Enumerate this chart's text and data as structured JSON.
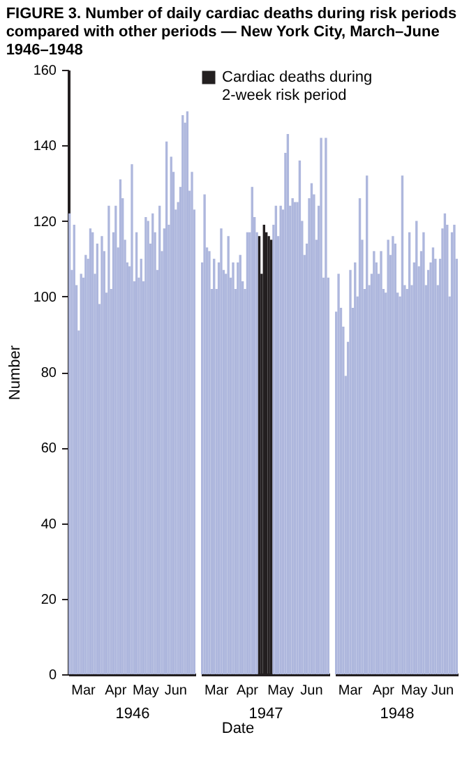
{
  "chart_data": [
    {
      "type": "bar",
      "title": "FIGURE 3. Number of daily cardiac deaths during risk periods compared with other periods — New York City, March–June 1946–1948",
      "ylabel": "Number",
      "xlabel": "1946",
      "color": "#aeb7dd",
      "ylim": [
        0,
        160
      ],
      "yticks": [
        0,
        20,
        40,
        60,
        80,
        100,
        120,
        140,
        160
      ],
      "categories": [
        null,
        null,
        null,
        null,
        null,
        null,
        "Mar",
        null,
        null,
        null,
        null,
        null,
        null,
        null,
        null,
        null,
        null,
        null,
        null,
        null,
        "Apr",
        null,
        null,
        null,
        null,
        null,
        null,
        null,
        null,
        null,
        null,
        null,
        null,
        "May",
        null,
        null,
        null,
        null,
        null,
        null,
        null,
        null,
        null,
        null,
        null,
        null,
        "Jun",
        null,
        null,
        null,
        null,
        null,
        null,
        null,
        null
      ],
      "values": [
        122,
        107,
        119,
        103,
        91,
        106,
        105,
        111,
        110,
        118,
        117,
        106,
        114,
        98,
        116,
        112,
        101,
        124,
        102,
        117,
        124,
        113,
        131,
        126,
        115,
        109,
        108,
        135,
        104,
        117,
        105,
        110,
        104,
        121,
        120,
        114,
        122,
        117,
        107,
        124,
        112,
        118,
        141,
        119,
        137,
        133,
        123,
        125,
        129,
        148,
        146,
        149,
        128,
        133,
        123
      ]
    },
    {
      "type": "bar",
      "xlabel": "1947",
      "ylim": [
        0,
        160
      ],
      "tick_labels": "x",
      "legend": "top",
      "annotations": [
        "Date"
      ],
      "categories": [
        null,
        null,
        null,
        null,
        null,
        null,
        "Mar",
        null,
        null,
        null,
        null,
        null,
        null,
        null,
        null,
        null,
        null,
        null,
        null,
        "Apr",
        null,
        null,
        null,
        null,
        null,
        null,
        null,
        null,
        null,
        null,
        null,
        null,
        null,
        "May",
        null,
        null,
        null,
        null,
        null,
        null,
        null,
        null,
        null,
        null,
        null,
        null,
        "Jun",
        null,
        null,
        null,
        null,
        null,
        null,
        null
      ],
      "series": [
        {
          "color": "#aeb7dd",
          "values": [
            109,
            127,
            113,
            112,
            102,
            110,
            102,
            109,
            118,
            107,
            106,
            116,
            105,
            109,
            102,
            109,
            111,
            104,
            102,
            117,
            117,
            129,
            121,
            117,
            null,
            null,
            null,
            null,
            null,
            null,
            119,
            124,
            116,
            124,
            123,
            138,
            143,
            124,
            126,
            125,
            125,
            136,
            120,
            111,
            114,
            126,
            130,
            127,
            115,
            124,
            142,
            105,
            142,
            105
          ]
        },
        {
          "name": "Cardiac deaths during 2-week risk period",
          "color": "#231f20",
          "values": [
            null,
            null,
            null,
            null,
            null,
            null,
            null,
            null,
            null,
            null,
            null,
            null,
            null,
            null,
            null,
            null,
            null,
            null,
            null,
            null,
            null,
            null,
            null,
            null,
            116,
            106,
            119,
            117,
            116,
            115,
            null,
            null,
            null,
            null,
            null,
            null,
            null,
            null,
            null,
            null,
            null,
            null,
            null,
            null,
            null,
            null,
            null,
            null,
            null,
            null,
            null,
            null,
            null,
            null
          ]
        }
      ]
    },
    {
      "type": "bar",
      "xlabel": "1948",
      "color": "#aeb7dd",
      "ylim": [
        0,
        160
      ],
      "tick_labels": "x",
      "categories": [
        null,
        null,
        null,
        null,
        null,
        null,
        "Mar",
        null,
        null,
        null,
        null,
        null,
        null,
        null,
        null,
        null,
        null,
        null,
        null,
        null,
        "Apr",
        null,
        null,
        null,
        null,
        null,
        null,
        null,
        null,
        null,
        null,
        null,
        null,
        "May",
        null,
        null,
        null,
        null,
        null,
        null,
        null,
        null,
        null,
        null,
        null,
        "Jun",
        null,
        null,
        null,
        null,
        null,
        null
      ],
      "values": [
        96,
        106,
        97,
        92,
        79,
        88,
        107,
        97,
        109,
        100,
        126,
        115,
        102,
        132,
        103,
        106,
        112,
        109,
        106,
        112,
        102,
        101,
        115,
        111,
        116,
        114,
        101,
        100,
        132,
        103,
        102,
        117,
        103,
        109,
        120,
        108,
        112,
        117,
        103,
        107,
        109,
        113,
        110,
        103,
        110,
        118,
        122,
        119,
        100,
        117,
        119,
        110
      ]
    }
  ]
}
